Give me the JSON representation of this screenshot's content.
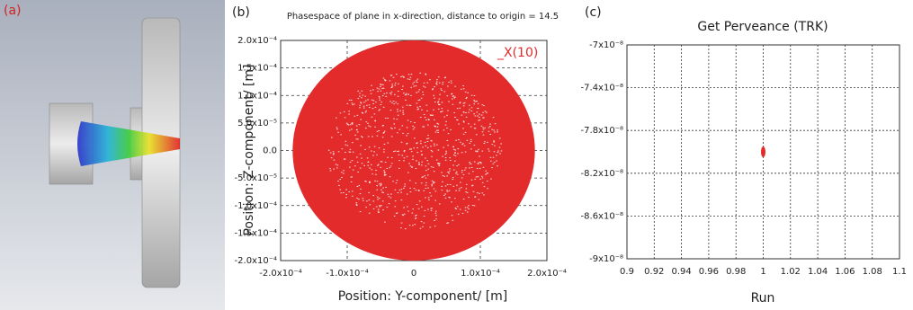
{
  "image_panel": {
    "label": "(a)"
  },
  "chart_data": [
    {
      "type": "scatter",
      "panel_label": "(b)",
      "title": "Phasespace of plane in x-direction, distance to origin = 14.5",
      "x_label": "Position: Y-component/ [m]",
      "y_label": "Position: Z-component/ [m]",
      "series": [
        {
          "name": "_X(10)",
          "color": "#e32b2b"
        }
      ],
      "xlim": [
        -0.0002,
        0.0002
      ],
      "ylim": [
        -0.0002,
        0.0002
      ],
      "xticks": [
        {
          "value": -0.0002,
          "label": "-2.0x10⁻⁴"
        },
        {
          "value": -0.0001,
          "label": "-1.0x10⁻⁴"
        },
        0,
        {
          "value": 0.0001,
          "label": "1.0x10⁻⁴"
        },
        {
          "value": 0.0002,
          "label": "2.0x10⁻⁴"
        }
      ],
      "yticks": [
        {
          "value": 0.0002,
          "label": "2.0x10⁻⁴"
        },
        {
          "value": 0.00015,
          "label": "1.5x10⁻⁴"
        },
        {
          "value": 0.0001,
          "label": "1.0x10⁻⁴"
        },
        {
          "value": 5e-05,
          "label": "5.0x10⁻⁵"
        },
        {
          "value": 0,
          "label": "0.0"
        },
        {
          "value": -5e-05,
          "label": "-5.0x10⁻⁵"
        },
        {
          "value": -0.0001,
          "label": "-1.0x10⁻⁴"
        },
        {
          "value": -0.00015,
          "label": "-1.5x10⁻⁴"
        },
        {
          "value": -0.0002,
          "label": "-2.0x10⁻⁴"
        }
      ],
      "grid": true
    },
    {
      "type": "scatter",
      "panel_label": "(c)",
      "title": "Get Perveance (TRK)",
      "x_label": "Run",
      "series": [
        {
          "color": "#e32b2b",
          "x": [
            1
          ],
          "values": [
            -8e-08
          ]
        }
      ],
      "xlim": [
        0.9,
        1.1
      ],
      "ylim": [
        -9e-08,
        -7e-08
      ],
      "xticks": [
        0.9,
        0.92,
        0.94,
        0.96,
        0.98,
        1,
        1.02,
        1.04,
        1.06,
        1.08,
        1.1
      ],
      "yticks": [
        {
          "value": -7e-08,
          "label": "-7x10⁻⁸"
        },
        {
          "value": -7.4e-08,
          "label": "-7.4x10⁻⁸"
        },
        {
          "value": -7.8e-08,
          "label": "-7.8x10⁻⁸"
        },
        {
          "value": -8.2e-08,
          "label": "-8.2x10⁻⁸"
        },
        {
          "value": -8.6e-08,
          "label": "-8.6x10⁻⁸"
        },
        {
          "value": -9e-08,
          "label": "-9x10⁻⁸"
        }
      ],
      "grid": true
    }
  ]
}
